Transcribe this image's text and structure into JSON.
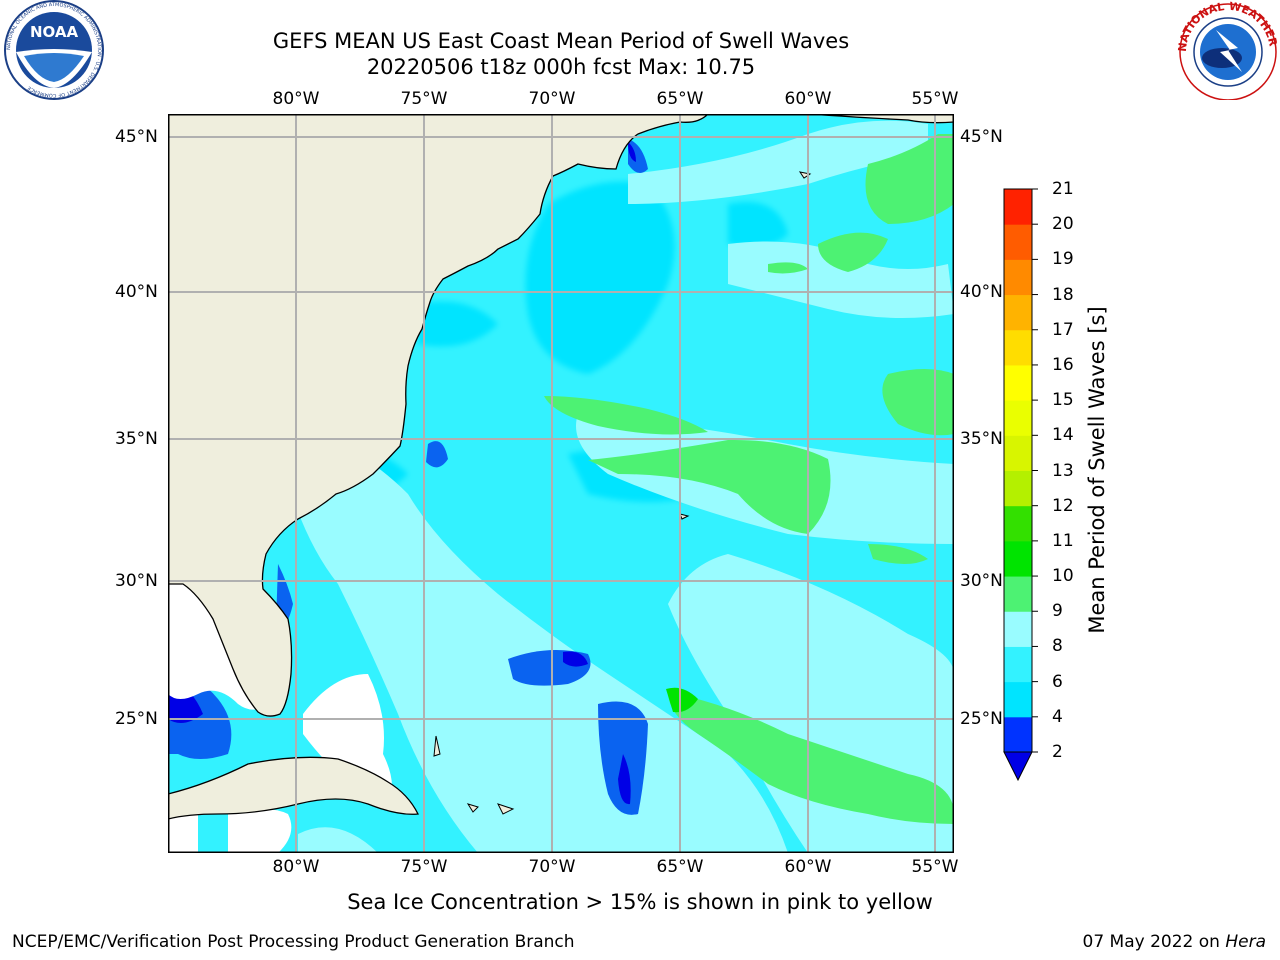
{
  "title": {
    "line1": "GEFS MEAN US East Coast Mean Period of Swell Waves",
    "line2": "20220506 t18z 000h fcst   Max: 10.75"
  },
  "map": {
    "lon_labels": [
      "80°W",
      "75°W",
      "70°W",
      "65°W",
      "60°W",
      "55°W"
    ],
    "lat_labels": [
      "45°N",
      "40°N",
      "35°N",
      "30°N",
      "25°N"
    ],
    "extent": {
      "lon_min": -85,
      "lon_max": -54.3,
      "lat_min": 20.5,
      "lat_max": 46
    },
    "land_color": "#efeedd",
    "grid_color": "#b0b0b0"
  },
  "colorbar": {
    "label": "Mean Period of Swell Waves [s]",
    "ticks": [
      "2",
      "4",
      "6",
      "8",
      "9",
      "10",
      "11",
      "12",
      "13",
      "14",
      "15",
      "16",
      "17",
      "18",
      "19",
      "20",
      "21"
    ],
    "colors": [
      "#0033ff",
      "#00e4ff",
      "#33f2ff",
      "#99fcff",
      "#4df273",
      "#00e400",
      "#33e000",
      "#b4f000",
      "#d8f500",
      "#eaff00",
      "#ffff00",
      "#ffdd00",
      "#ffb300",
      "#ff8a00",
      "#ff5c00",
      "#ff2200",
      "#ff0000"
    ],
    "under_color": "#0000e6"
  },
  "footer": {
    "note": "Sea Ice Concentration > 15% is shown in pink to yellow",
    "credit": "NCEP/EMC/Verification Post Processing Product Generation Branch",
    "date": "07 May 2022 on",
    "machine": "Hera"
  },
  "logos": {
    "noaa": "NOAA",
    "noaa_ring": "NATIONAL OCEANIC AND ATMOSPHERIC ADMINISTRATION · U.S. DEPARTMENT OF COMMERCE",
    "nws": "NATIONAL WEATHER SERVICE"
  }
}
